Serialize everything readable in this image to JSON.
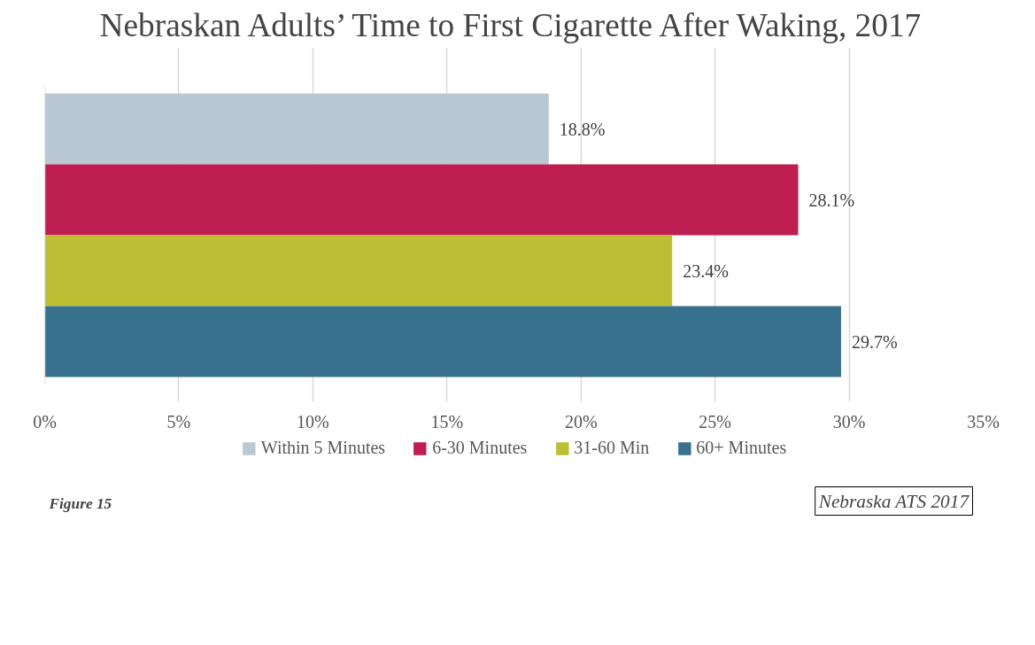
{
  "chart_data": {
    "type": "bar",
    "orientation": "horizontal",
    "title": "Nebraskan Adults’ Time to First Cigarette After Waking, 2017",
    "categories": [
      null,
      null,
      null,
      null
    ],
    "series": [
      {
        "name": "Within 5 Minutes",
        "color": "#b9c8d3",
        "values": [
          18.8,
          null,
          null,
          null
        ],
        "value_labels": [
          "18.8%",
          null,
          null,
          null
        ]
      },
      {
        "name": "6-30 Minutes",
        "color": "#be1e51",
        "values": [
          null,
          28.1,
          null,
          null
        ],
        "value_labels": [
          null,
          "28.1%",
          null,
          null
        ]
      },
      {
        "name": "31-60 Min",
        "color": "#bcbe34",
        "values": [
          null,
          null,
          23.4,
          null
        ],
        "value_labels": [
          null,
          null,
          "23.4%",
          null
        ]
      },
      {
        "name": "60+ Minutes",
        "color": "#38718e",
        "values": [
          null,
          null,
          null,
          29.7
        ],
        "value_labels": [
          null,
          null,
          null,
          "29.7%"
        ]
      }
    ],
    "xlim": [
      0,
      35
    ],
    "xticks": [
      {
        "value": 0,
        "label": "0%"
      },
      {
        "value": 5,
        "label": "5%"
      },
      {
        "value": 10,
        "label": "10%"
      },
      {
        "value": 15,
        "label": "15%"
      },
      {
        "value": 20,
        "label": "20%"
      },
      {
        "value": 25,
        "label": "25%"
      },
      {
        "value": 30,
        "label": "30%"
      },
      {
        "value": 35,
        "label": "35%"
      }
    ],
    "tick_labels": "x",
    "grid": "x",
    "legend": "bottom",
    "annotations": [
      "Figure 15",
      "Nebraska ATS 2017"
    ]
  }
}
